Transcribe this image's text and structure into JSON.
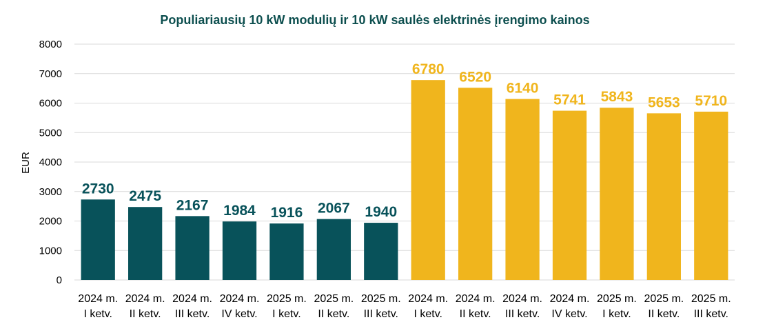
{
  "chart_data": {
    "type": "bar",
    "title": "Populiariausių 10 kW modulių ir 10 kW saulės elektrinės įrengimo kainos",
    "ylabel": "EUR",
    "xlabel": "",
    "ylim": [
      0,
      8000
    ],
    "yticks": [
      0,
      1000,
      2000,
      3000,
      4000,
      5000,
      6000,
      7000,
      8000
    ],
    "grid": true,
    "legend": "none",
    "categories": [
      [
        "2024 m.",
        "I ketv."
      ],
      [
        "2024 m.",
        "II ketv."
      ],
      [
        "2024 m.",
        "III ketv."
      ],
      [
        "2024 m.",
        "IV ketv."
      ],
      [
        "2025 m.",
        "I ketv."
      ],
      [
        "2025 m.",
        "II ketv."
      ],
      [
        "2025 m.",
        "III ketv."
      ],
      [
        "2024 m.",
        "I ketv."
      ],
      [
        "2024 m.",
        "II ketv."
      ],
      [
        "2024 m.",
        "III ketv."
      ],
      [
        "2024 m.",
        "IV ketv."
      ],
      [
        "2025 m.",
        "I ketv."
      ],
      [
        "2025 m.",
        "II ketv."
      ],
      [
        "2025 m.",
        "III ketv."
      ]
    ],
    "values": [
      2730,
      2475,
      2167,
      1984,
      1916,
      2067,
      1940,
      6780,
      6520,
      6140,
      5741,
      5843,
      5653,
      5710
    ],
    "bar_colors": [
      "#08525a",
      "#08525a",
      "#08525a",
      "#08525a",
      "#08525a",
      "#08525a",
      "#08525a",
      "#f0b51d",
      "#f0b51d",
      "#f0b51d",
      "#f0b51d",
      "#f0b51d",
      "#f0b51d",
      "#f0b51d"
    ],
    "title_color": "#0d4f4f",
    "grid_color": "#d9d9d9"
  }
}
